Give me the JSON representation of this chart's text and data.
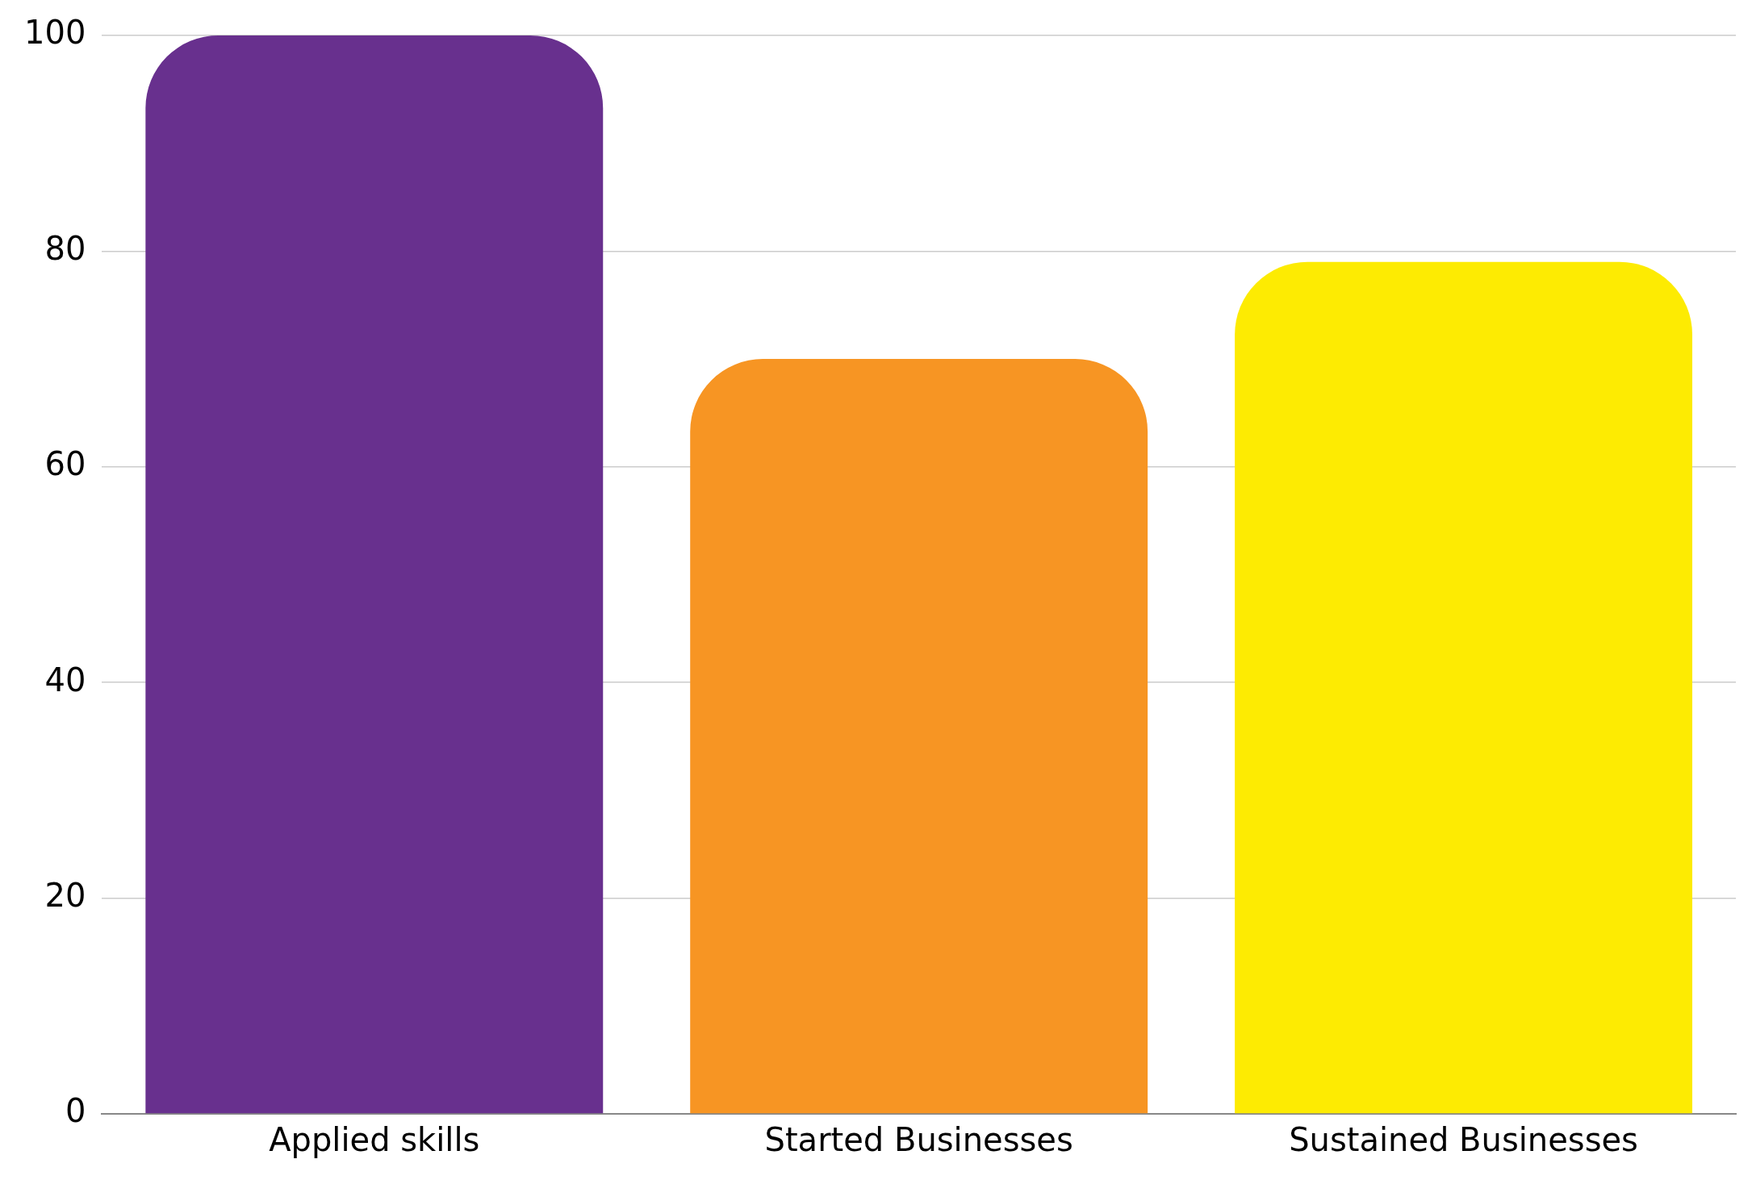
{
  "chart_data": {
    "type": "bar",
    "categories": [
      "Applied skills",
      "Started Businesses",
      "Sustained Businesses"
    ],
    "values": [
      100,
      70,
      79
    ],
    "colors": [
      "#68308e",
      "#f79523",
      "#fdeb02"
    ],
    "ylim": [
      0,
      100
    ],
    "yticks": [
      0,
      20,
      40,
      60,
      80,
      100
    ],
    "grid": "y",
    "legend": false
  }
}
